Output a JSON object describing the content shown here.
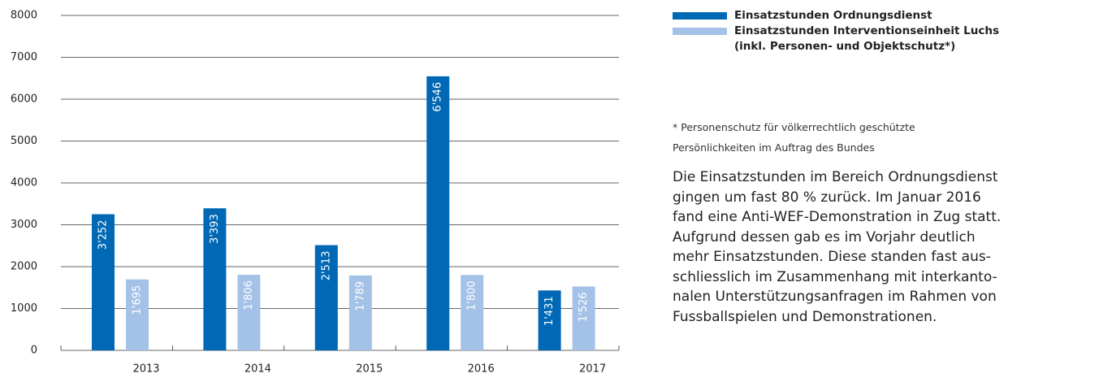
{
  "chart_data": {
    "type": "bar",
    "categories": [
      "2013",
      "2014",
      "2015",
      "2016",
      "2017"
    ],
    "series": [
      {
        "name": "Einsatzstunden Ordnungsdienst",
        "color": "#0068b4",
        "values": [
          3252,
          3393,
          2513,
          6546,
          1431
        ],
        "value_labels": [
          "3'252",
          "3'393",
          "2'513",
          "6'546",
          "1'431"
        ]
      },
      {
        "name": "Einsatzstunden Interventionseinheit Luchs\n(inkl. Personen- und Objektschutz*)",
        "color": "#a4c2e8",
        "values": [
          1695,
          1806,
          1789,
          1800,
          1526
        ],
        "value_labels": [
          "1'695",
          "1'806",
          "1'789",
          "1'800",
          "1'526"
        ]
      }
    ],
    "ylim": [
      0,
      8000
    ],
    "yticks": [
      0,
      1000,
      2000,
      3000,
      4000,
      5000,
      6000,
      7000,
      8000
    ],
    "grid": true,
    "note": [
      "* Personenschutz für völkerrechtlich geschützte",
      "Persönlichkeiten im Auftrag des Bundes"
    ],
    "paragraph": [
      "Die Einsatzstunden im Bereich Ordnungsdienst",
      "gingen um fast 80 % zurück. Im Januar 2016",
      "fand eine Anti-WEF-Demonstration in Zug statt.",
      "Aufgrund dessen gab es im Vorjahr deutlich",
      "mehr Einsatzstunden. Diese standen fast aus-",
      "schliesslich im Zusammenhang mit interkanto-",
      "nalen Unterstützungsanfragen im Rahmen von",
      "Fussballspielen und Demonstrationen."
    ]
  }
}
